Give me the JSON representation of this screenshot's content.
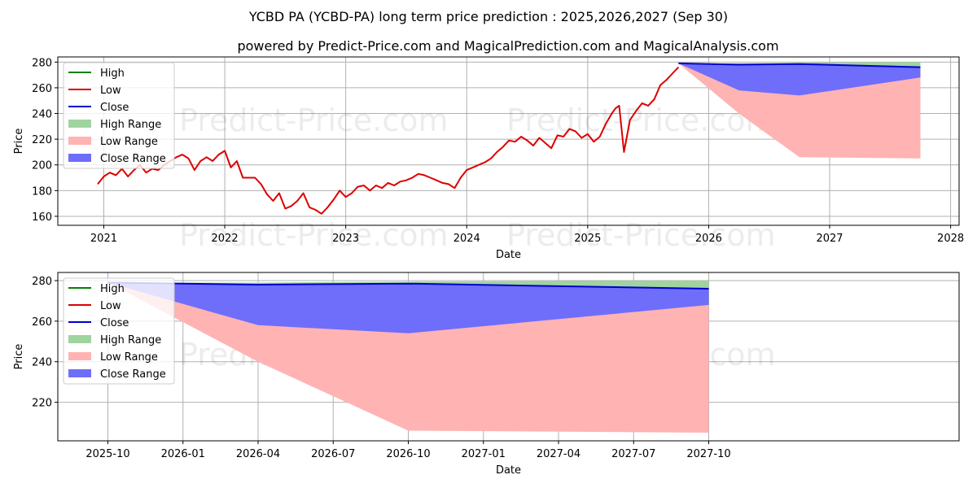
{
  "title": "YCBD PA (YCBD-PA) long term price prediction : 2025,2026,2027 (Sep 30)",
  "subtitle": "powered by Predict-Price.com and MagicalPrediction.com and MagicalAnalysis.com",
  "watermark": "Predict-Price.com",
  "colors": {
    "high": "#008000",
    "low": "#dd0000",
    "close": "#0000cc",
    "high_range": "#9fd49f",
    "low_range": "#ffb3b3",
    "close_range": "#6e6efa"
  },
  "legend": {
    "items": [
      {
        "label": "High",
        "kind": "line",
        "color_key": "high"
      },
      {
        "label": "Low",
        "kind": "line",
        "color_key": "low"
      },
      {
        "label": "Close",
        "kind": "line",
        "color_key": "close"
      },
      {
        "label": "High Range",
        "kind": "patch",
        "color_key": "high_range"
      },
      {
        "label": "Low Range",
        "kind": "patch",
        "color_key": "low_range"
      },
      {
        "label": "Close Range",
        "kind": "patch",
        "color_key": "close_range"
      }
    ]
  },
  "chart_data": [
    {
      "type": "line",
      "panel": "history-and-forecast",
      "xlabel": "Date",
      "ylabel": "Price",
      "xlim": [
        2020.62,
        2028.07
      ],
      "ylim": [
        153,
        284
      ],
      "x_ticks": [
        {
          "value": 2021,
          "label": "2021"
        },
        {
          "value": 2022,
          "label": "2022"
        },
        {
          "value": 2023,
          "label": "2023"
        },
        {
          "value": 2024,
          "label": "2024"
        },
        {
          "value": 2025,
          "label": "2025"
        },
        {
          "value": 2026,
          "label": "2026"
        },
        {
          "value": 2027,
          "label": "2027"
        },
        {
          "value": 2028,
          "label": "2028"
        }
      ],
      "y_ticks": [
        160,
        180,
        200,
        220,
        240,
        260,
        280
      ],
      "grid": true,
      "legend_position": "top-left",
      "history_series": {
        "name": "Low",
        "x": [
          2020.95,
          2021.0,
          2021.05,
          2021.1,
          2021.15,
          2021.2,
          2021.25,
          2021.3,
          2021.35,
          2021.4,
          2021.45,
          2021.5,
          2021.55,
          2021.6,
          2021.65,
          2021.7,
          2021.75,
          2021.8,
          2021.85,
          2021.9,
          2021.95,
          2022.0,
          2022.05,
          2022.1,
          2022.15,
          2022.2,
          2022.25,
          2022.3,
          2022.35,
          2022.4,
          2022.45,
          2022.5,
          2022.55,
          2022.6,
          2022.65,
          2022.7,
          2022.75,
          2022.8,
          2022.85,
          2022.9,
          2022.95,
          2023.0,
          2023.05,
          2023.1,
          2023.15,
          2023.2,
          2023.25,
          2023.3,
          2023.35,
          2023.4,
          2023.45,
          2023.5,
          2023.55,
          2023.6,
          2023.65,
          2023.7,
          2023.75,
          2023.8,
          2023.85,
          2023.9,
          2023.95,
          2024.0,
          2024.05,
          2024.1,
          2024.15,
          2024.2,
          2024.25,
          2024.3,
          2024.35,
          2024.4,
          2024.45,
          2024.5,
          2024.55,
          2024.6,
          2024.65,
          2024.7,
          2024.75,
          2024.8,
          2024.85,
          2024.9,
          2024.95,
          2025.0,
          2025.05,
          2025.1,
          2025.15,
          2025.2,
          2025.23,
          2025.26,
          2025.3,
          2025.35,
          2025.4,
          2025.45,
          2025.5,
          2025.55,
          2025.6,
          2025.65,
          2025.7,
          2025.75
        ],
        "values": [
          185,
          191,
          194,
          192,
          197,
          191,
          196,
          200,
          194,
          197,
          196,
          200,
          203,
          206,
          208,
          205,
          196,
          203,
          206,
          203,
          208,
          211,
          198,
          203,
          190,
          190,
          190,
          185,
          177,
          172,
          178,
          166,
          168,
          172,
          178,
          167,
          165,
          162,
          167,
          173,
          180,
          175,
          178,
          183,
          184,
          180,
          184,
          182,
          186,
          184,
          187,
          188,
          190,
          193,
          192,
          190,
          188,
          186,
          185,
          182,
          190,
          196,
          198,
          200,
          202,
          205,
          210,
          214,
          219,
          218,
          222,
          219,
          215,
          221,
          217,
          213,
          223,
          222,
          228,
          226,
          221,
          224,
          218,
          222,
          232,
          240,
          244,
          246,
          210,
          235,
          242,
          248,
          246,
          251,
          262,
          266,
          271,
          276
        ]
      },
      "forecast": {
        "x": [
          2025.75,
          2026.25,
          2026.75,
          2027.75
        ],
        "close": [
          279,
          278,
          278.5,
          276
        ],
        "high_range_upper": [
          279,
          279,
          279.5,
          280
        ],
        "close_range_lower": [
          279,
          258,
          254,
          268
        ],
        "low_range_lower": [
          279,
          240,
          206,
          205
        ]
      }
    },
    {
      "type": "line",
      "panel": "forecast-zoom",
      "xlabel": "Date",
      "ylabel": "Price",
      "xlim": [
        -2,
        34
      ],
      "ylim": [
        201,
        284
      ],
      "x_ticks": [
        {
          "value": 0,
          "label": "2025-10"
        },
        {
          "value": 3,
          "label": "2026-01"
        },
        {
          "value": 6,
          "label": "2026-04"
        },
        {
          "value": 9,
          "label": "2026-07"
        },
        {
          "value": 12,
          "label": "2026-10"
        },
        {
          "value": 15,
          "label": "2027-01"
        },
        {
          "value": 18,
          "label": "2027-04"
        },
        {
          "value": 21,
          "label": "2027-07"
        },
        {
          "value": 24,
          "label": "2027-10"
        }
      ],
      "y_ticks": [
        220,
        240,
        260,
        280
      ],
      "grid": true,
      "legend_position": "top-left",
      "forecast": {
        "x": [
          0,
          6,
          12,
          24
        ],
        "close": [
          279,
          278,
          278.5,
          276
        ],
        "high_range_upper": [
          279,
          279,
          279.5,
          280
        ],
        "close_range_lower": [
          279,
          258,
          254,
          268
        ],
        "low_range_lower": [
          279,
          240,
          206,
          205
        ]
      }
    }
  ]
}
